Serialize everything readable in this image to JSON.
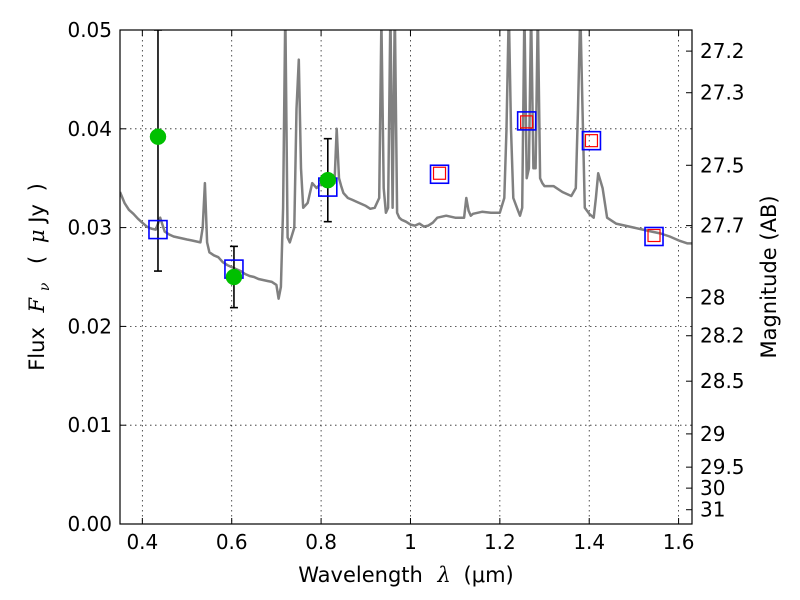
{
  "chart_data": {
    "type": "scatter",
    "xlabel": {
      "text": "Wavelength",
      "symbol": "λ",
      "unit": "(μm)"
    },
    "ylabel": {
      "text": "Flux",
      "symbol": "F",
      "subscript": "ν",
      "unit_open": "(",
      "unit_mu": "μ",
      "unit_rest": "Jy",
      "unit_close": ")"
    },
    "y2label": "Magnitude (AB)",
    "xlim": [
      0.35,
      1.63
    ],
    "ylim": [
      0.0,
      0.05
    ],
    "grid": true,
    "x_ticks": [
      {
        "value": 0.4,
        "label": "0.4"
      },
      {
        "value": 0.6,
        "label": "0.6"
      },
      {
        "value": 0.8,
        "label": "0.8"
      },
      {
        "value": 1.0,
        "label": "1"
      },
      {
        "value": 1.2,
        "label": "1.2"
      },
      {
        "value": 1.4,
        "label": "1.4"
      },
      {
        "value": 1.6,
        "label": "1.6"
      }
    ],
    "y_ticks": [
      {
        "value": 0.0,
        "label": "0.00"
      },
      {
        "value": 0.01,
        "label": "0.01"
      },
      {
        "value": 0.02,
        "label": "0.02"
      },
      {
        "value": 0.03,
        "label": "0.03"
      },
      {
        "value": 0.04,
        "label": "0.04"
      },
      {
        "value": 0.05,
        "label": "0.05"
      }
    ],
    "y2_ticks": [
      {
        "mag": 27.2,
        "label": "27.2"
      },
      {
        "mag": 27.3,
        "label": "27.3"
      },
      {
        "mag": 27.5,
        "label": "27.5"
      },
      {
        "mag": 27.7,
        "label": "27.7"
      },
      {
        "mag": 28.0,
        "label": "28"
      },
      {
        "mag": 28.2,
        "label": "28.2"
      },
      {
        "mag": 28.5,
        "label": "28.5"
      },
      {
        "mag": 29.0,
        "label": "29"
      },
      {
        "mag": 29.5,
        "label": "29.5"
      },
      {
        "mag": 30.0,
        "label": "30"
      },
      {
        "mag": 31.0,
        "label": "31"
      }
    ],
    "magnitude_zero_point": 23.9,
    "series": [
      {
        "kind": "model_spectrum",
        "color": "#808080",
        "x": [
          0.35,
          0.36,
          0.37,
          0.38,
          0.39,
          0.4,
          0.41,
          0.42,
          0.43,
          0.44,
          0.45,
          0.46,
          0.47,
          0.48,
          0.49,
          0.5,
          0.51,
          0.52,
          0.53,
          0.535,
          0.54,
          0.545,
          0.55,
          0.56,
          0.57,
          0.58,
          0.59,
          0.6,
          0.61,
          0.62,
          0.63,
          0.64,
          0.65,
          0.66,
          0.67,
          0.68,
          0.69,
          0.7,
          0.705,
          0.71,
          0.715,
          0.72,
          0.725,
          0.73,
          0.74,
          0.745,
          0.75,
          0.755,
          0.76,
          0.77,
          0.78,
          0.79,
          0.8,
          0.81,
          0.82,
          0.83,
          0.835,
          0.84,
          0.845,
          0.85,
          0.86,
          0.87,
          0.88,
          0.89,
          0.9,
          0.91,
          0.92,
          0.93,
          0.935,
          0.94,
          0.945,
          0.95,
          0.955,
          0.96,
          0.965,
          0.97,
          0.975,
          0.98,
          0.99,
          1.0,
          1.01,
          1.02,
          1.03,
          1.04,
          1.05,
          1.06,
          1.08,
          1.1,
          1.12,
          1.125,
          1.13,
          1.135,
          1.14,
          1.16,
          1.18,
          1.2,
          1.21,
          1.215,
          1.22,
          1.225,
          1.23,
          1.24,
          1.245,
          1.25,
          1.255,
          1.26,
          1.265,
          1.27,
          1.275,
          1.28,
          1.285,
          1.29,
          1.295,
          1.3,
          1.32,
          1.34,
          1.36,
          1.37,
          1.375,
          1.38,
          1.385,
          1.39,
          1.4,
          1.41,
          1.415,
          1.42,
          1.43,
          1.44,
          1.46,
          1.48,
          1.5,
          1.52,
          1.54,
          1.56,
          1.58,
          1.6,
          1.62,
          1.63
        ],
        "y": [
          0.0336,
          0.0325,
          0.0318,
          0.0314,
          0.0309,
          0.0305,
          0.0301,
          0.0299,
          0.0298,
          0.031,
          0.0296,
          0.0293,
          0.0291,
          0.029,
          0.0289,
          0.0288,
          0.0287,
          0.0286,
          0.0285,
          0.03,
          0.0345,
          0.0285,
          0.0275,
          0.0272,
          0.027,
          0.0265,
          0.0262,
          0.026,
          0.0258,
          0.0256,
          0.0253,
          0.0251,
          0.025,
          0.0248,
          0.0247,
          0.0246,
          0.0245,
          0.0242,
          0.0228,
          0.024,
          0.032,
          0.052,
          0.029,
          0.0285,
          0.03,
          0.042,
          0.047,
          0.036,
          0.032,
          0.0325,
          0.0345,
          0.034,
          0.0345,
          0.035,
          0.035,
          0.0345,
          0.04,
          0.035,
          0.0342,
          0.0335,
          0.033,
          0.0328,
          0.0326,
          0.0324,
          0.0322,
          0.0319,
          0.032,
          0.033,
          0.051,
          0.034,
          0.0315,
          0.032,
          0.052,
          0.032,
          0.052,
          0.0315,
          0.031,
          0.0308,
          0.0306,
          0.0303,
          0.0302,
          0.0304,
          0.0301,
          0.0302,
          0.0305,
          0.031,
          0.0312,
          0.031,
          0.031,
          0.033,
          0.0317,
          0.0312,
          0.0314,
          0.0316,
          0.0315,
          0.0315,
          0.033,
          0.04,
          0.052,
          0.04,
          0.033,
          0.0318,
          0.0312,
          0.032,
          0.052,
          0.035,
          0.036,
          0.052,
          0.036,
          0.036,
          0.052,
          0.035,
          0.0345,
          0.0342,
          0.0342,
          0.0336,
          0.0332,
          0.034,
          0.042,
          0.052,
          0.042,
          0.032,
          0.0314,
          0.031,
          0.033,
          0.0355,
          0.034,
          0.031,
          0.0304,
          0.0302,
          0.03,
          0.0298,
          0.0296,
          0.0294,
          0.0291,
          0.0287,
          0.0284,
          0.0284
        ]
      },
      {
        "kind": "observed",
        "marker": "circle",
        "color": "#00c000",
        "points": [
          {
            "x": 0.435,
            "y": 0.0392,
            "err_low": 0.0136,
            "err_high": 0.0108
          },
          {
            "x": 0.605,
            "y": 0.025,
            "err_low": 0.0031,
            "err_high": 0.0031
          },
          {
            "x": 0.815,
            "y": 0.0348,
            "err_low": 0.0042,
            "err_high": 0.0042
          }
        ]
      },
      {
        "kind": "model_synthetic",
        "marker": "square",
        "color": "#0000ff",
        "points": [
          {
            "x": 0.435,
            "y": 0.0298
          },
          {
            "x": 0.605,
            "y": 0.0258
          },
          {
            "x": 0.815,
            "y": 0.0341
          },
          {
            "x": 1.065,
            "y": 0.0354
          },
          {
            "x": 1.26,
            "y": 0.0408
          },
          {
            "x": 1.405,
            "y": 0.0388
          },
          {
            "x": 1.545,
            "y": 0.0291
          }
        ]
      },
      {
        "kind": "model_synthetic_inner",
        "marker": "square",
        "color": "#ff0000",
        "points": [
          {
            "x": 1.065,
            "y": 0.0355
          },
          {
            "x": 1.26,
            "y": 0.0407
          },
          {
            "x": 1.405,
            "y": 0.0388
          },
          {
            "x": 1.545,
            "y": 0.0292
          }
        ]
      }
    ]
  }
}
